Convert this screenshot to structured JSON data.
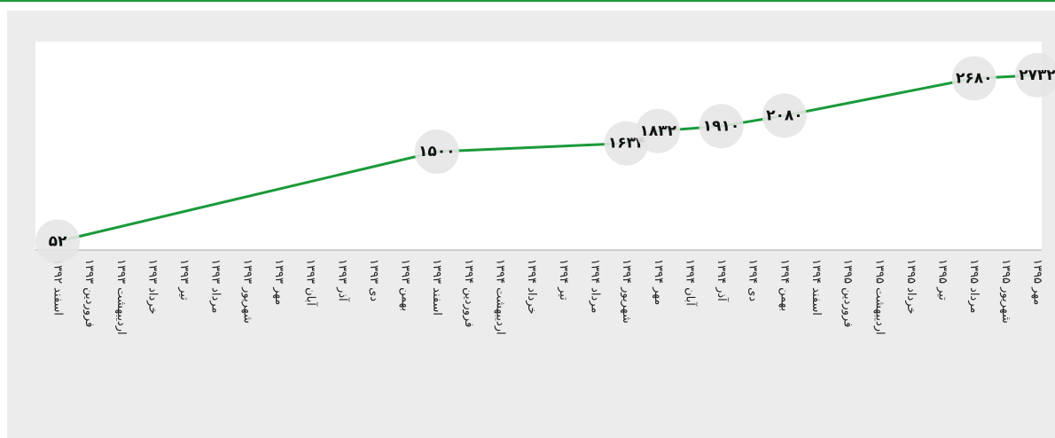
{
  "chart_data": {
    "type": "line",
    "categories": [
      "اسفند ۱۳۹۲",
      "فروردین ۱۳۹۳",
      "اردیبهشت ۱۳۹۳",
      "خرداد ۱۳۹۳",
      "تیر ۱۳۹۳",
      "مرداد ۱۳۹۳",
      "شهریور ۱۳۹۳",
      "مهر ۱۳۹۳",
      "آبان ۱۳۹۳",
      "آذر ۱۳۹۳",
      "دی ۱۳۹۳",
      "بهمن ۱۳۹۳",
      "اسفند ۱۳۹۳",
      "فروردین ۱۳۹۴",
      "اردیبهشت ۱۳۹۴",
      "خرداد ۱۳۹۴",
      "تیر ۱۳۹۴",
      "مرداد ۱۳۹۴",
      "شهریور ۱۳۹۴",
      "مهر ۱۳۹۴",
      "آبان ۱۳۹۴",
      "آذر ۱۳۹۴",
      "دی ۱۳۹۴",
      "بهمن ۱۳۹۴",
      "اسفند ۱۳۹۴",
      "فروردین ۱۳۹۵",
      "اردیبهشت ۱۳۹۵",
      "خرداد ۱۳۹۵",
      "تیر ۱۳۹۵",
      "مرداد ۱۳۹۵",
      "شهریور ۱۳۹۵",
      "مهر ۱۳۹۵"
    ],
    "x": [
      "اسفند ۱۳۹۲",
      "اسفند ۱۳۹۳",
      "شهریور ۱۳۹۴",
      "مهر ۱۳۹۴",
      "آذر ۱۳۹۴",
      "بهمن ۱۳۹۴",
      "مرداد ۱۳۹۵",
      "مهر ۱۳۹۵"
    ],
    "values": [
      52,
      1500,
      1634,
      1832,
      1910,
      2080,
      2680,
      2732
    ],
    "value_labels": [
      "۵۲",
      "۱۵۰۰",
      "۱۶۳۴",
      "۱۸۳۲",
      "۱۹۱۰",
      "۲۰۸۰",
      "۲۶۸۰",
      "۲۷۳۲"
    ],
    "color": "#1a9a3a",
    "ylim": [
      0,
      3000
    ]
  }
}
